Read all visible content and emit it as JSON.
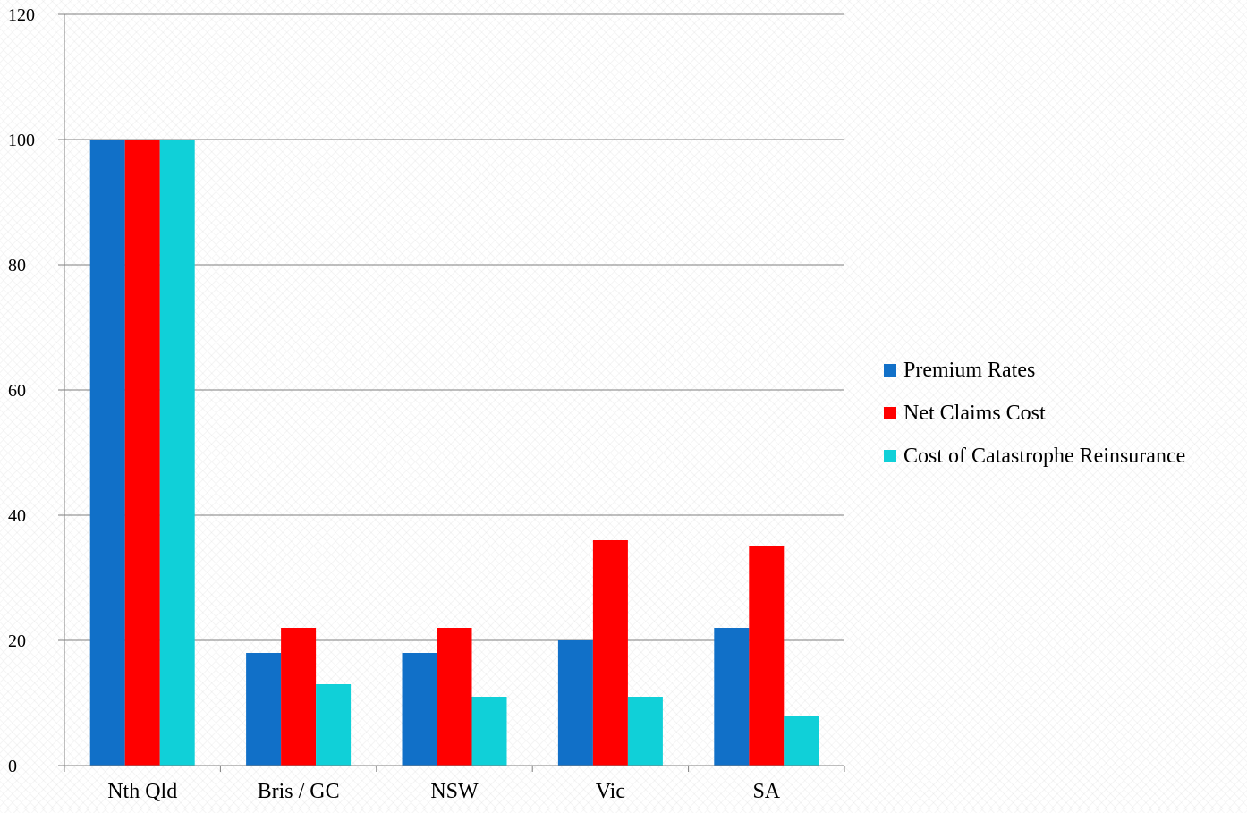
{
  "colors": {
    "premium": "#1170c8",
    "net_claims": "#ff0000",
    "catastrophe": "#10d0d8",
    "gridline": "#7f7f7f",
    "axis": "#7f7f7f"
  },
  "chart_data": {
    "type": "bar",
    "title": "",
    "xlabel": "",
    "ylabel": "",
    "categories": [
      "Nth Qld",
      "Bris / GC",
      "NSW",
      "Vic",
      "SA"
    ],
    "series": [
      {
        "name": "Premium Rates",
        "color": "#1170c8",
        "values": [
          100,
          18,
          18,
          20,
          22
        ]
      },
      {
        "name": "Net Claims Cost",
        "color": "#ff0000",
        "values": [
          100,
          22,
          22,
          36,
          35
        ]
      },
      {
        "name": "Cost of Catastrophe Reinsurance",
        "color": "#10d0d8",
        "values": [
          100,
          13,
          11,
          11,
          8
        ]
      }
    ],
    "ylim": [
      0,
      120
    ],
    "yticks": [
      "0",
      "20",
      "40",
      "60",
      "80",
      "100",
      "120"
    ],
    "grid": true,
    "legend_position": "right"
  }
}
